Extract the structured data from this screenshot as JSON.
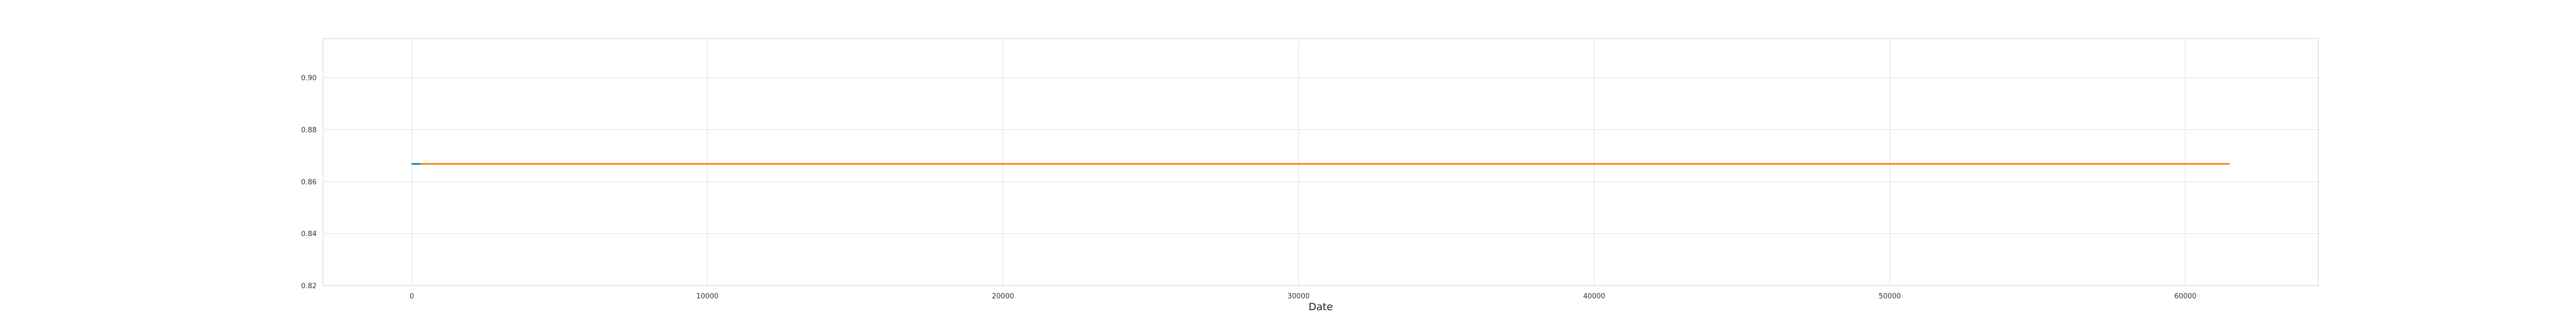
{
  "chart_data": {
    "type": "line",
    "title": "",
    "xlabel": "Date",
    "ylabel": "",
    "xlim": [
      -3000,
      64500
    ],
    "ylim": [
      0.82,
      0.915
    ],
    "x_ticks": [
      0,
      10000,
      20000,
      30000,
      40000,
      50000,
      60000
    ],
    "x_tick_labels": [
      "0",
      "10000",
      "20000",
      "30000",
      "40000",
      "50000",
      "60000"
    ],
    "y_ticks": [
      0.82,
      0.84,
      0.86,
      0.88,
      0.9
    ],
    "y_tick_labels": [
      "0.82",
      "0.84",
      "0.86",
      "0.88",
      "0.90"
    ],
    "grid": true,
    "series": [
      {
        "color": "#1f77b4",
        "x": [
          0,
          300
        ],
        "y": [
          0.8668,
          0.8668
        ]
      },
      {
        "color": "#ff7f0e",
        "x": [
          300,
          61500
        ],
        "y": [
          0.8668,
          0.8668
        ]
      }
    ]
  }
}
